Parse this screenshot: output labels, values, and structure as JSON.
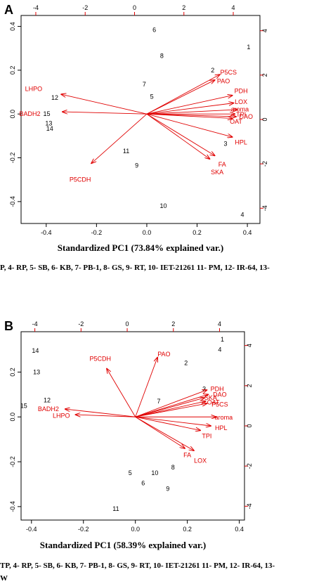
{
  "chart_data": [
    {
      "type": "scatter",
      "panel_label": "A",
      "xlabel": "Standardized PC1 (73.84% explained var.)",
      "caption": "P, 4- RP, 5- SB, 6- KB, 7- PB-1, 8- GS, 9- RT, 10- IET-21261 11- PM, 12- IR-64, 13-",
      "xlim": [
        -0.5,
        0.45
      ],
      "ylim": [
        -0.5,
        0.45
      ],
      "x_ticks": [
        -0.4,
        -0.2,
        0.0,
        0.2,
        0.4
      ],
      "x_tick_labels": [
        "-0.4",
        "-0.2",
        "0.0",
        "0.2",
        "0.4"
      ],
      "y_ticks": [
        -0.4,
        -0.2,
        0.0,
        0.2,
        0.4
      ],
      "y_tick_labels": [
        "-0.4",
        "-0.2",
        "0.0",
        "0.2",
        "0.4"
      ],
      "top_ticks": [
        -4,
        -2,
        0,
        2,
        4
      ],
      "top_tick_labels": [
        "-4",
        "-2",
        "0",
        "2",
        "4"
      ],
      "right_ticks": [
        -4,
        -2,
        0,
        2,
        4
      ],
      "right_tick_labels": [
        "-4",
        "-2",
        "0",
        "2",
        "4"
      ],
      "observations": [
        {
          "label": "1",
          "x": 0.405,
          "y": 0.305
        },
        {
          "label": "2",
          "x": 0.262,
          "y": 0.2
        },
        {
          "label": "3",
          "x": 0.313,
          "y": -0.135
        },
        {
          "label": "4",
          "x": 0.38,
          "y": -0.46
        },
        {
          "label": "5",
          "x": 0.02,
          "y": 0.08
        },
        {
          "label": "6",
          "x": 0.03,
          "y": 0.385
        },
        {
          "label": "7",
          "x": -0.01,
          "y": 0.135
        },
        {
          "label": "8",
          "x": 0.06,
          "y": 0.265
        },
        {
          "label": "9",
          "x": -0.04,
          "y": -0.235
        },
        {
          "label": "10",
          "x": 0.066,
          "y": -0.42
        },
        {
          "label": "11",
          "x": -0.082,
          "y": -0.17
        },
        {
          "label": "12",
          "x": -0.366,
          "y": 0.075
        },
        {
          "label": "13",
          "x": -0.39,
          "y": -0.042
        },
        {
          "label": "14",
          "x": -0.386,
          "y": -0.066
        },
        {
          "label": "15",
          "x": -0.398,
          "y": 0.0
        }
      ],
      "variables": [
        {
          "label": "LHPO",
          "x": -0.34,
          "y": 0.09,
          "label_x": -0.45,
          "label_y": 0.115
        },
        {
          "label": "BADH2",
          "x": -0.335,
          "y": 0.01,
          "label_x": -0.465,
          "label_y": 0.0
        },
        {
          "label": "P5CDH",
          "x": -0.22,
          "y": -0.225,
          "label_x": -0.265,
          "label_y": -0.3
        },
        {
          "label": "P5CS",
          "x": 0.29,
          "y": 0.18,
          "label_x": 0.325,
          "label_y": 0.19
        },
        {
          "label": "PAO",
          "x": 0.27,
          "y": 0.155,
          "label_x": 0.305,
          "label_y": 0.15
        },
        {
          "label": "PDH",
          "x": 0.34,
          "y": 0.085,
          "label_x": 0.375,
          "label_y": 0.105
        },
        {
          "label": "LOX",
          "x": 0.345,
          "y": 0.05,
          "label_x": 0.375,
          "label_y": 0.055
        },
        {
          "label": "aroma",
          "x": 0.36,
          "y": 0.02,
          "label_x": 0.37,
          "label_y": 0.022
        },
        {
          "label": "TPI",
          "x": 0.35,
          "y": 0.0,
          "label_x": 0.375,
          "label_y": -0.003
        },
        {
          "label": "DAO",
          "x": 0.355,
          "y": -0.012,
          "label_x": 0.395,
          "label_y": -0.012
        },
        {
          "label": "OAT",
          "x": 0.34,
          "y": -0.02,
          "label_x": 0.355,
          "label_y": -0.035
        },
        {
          "label": "HPL",
          "x": 0.34,
          "y": -0.105,
          "label_x": 0.375,
          "label_y": -0.13
        },
        {
          "label": "FA",
          "x": 0.27,
          "y": -0.19,
          "label_x": 0.3,
          "label_y": -0.23
        },
        {
          "label": "SKA",
          "x": 0.25,
          "y": -0.205,
          "label_x": 0.28,
          "label_y": -0.265
        }
      ]
    },
    {
      "type": "scatter",
      "panel_label": "B",
      "xlabel": "Standardized PC1 (58.39% explained var.)",
      "caption": "TP, 4- RP, 5- SB, 6- KB, 7- PB-1, 8- GS, 9- RT, 10- IET-21261 11- PM, 12- IR-64, 13-",
      "caption_line2": "W",
      "xlim": [
        -0.44,
        0.42
      ],
      "ylim": [
        -0.46,
        0.38
      ],
      "x_ticks": [
        -0.4,
        -0.2,
        0.0,
        0.2,
        0.4
      ],
      "x_tick_labels": [
        "-0.4",
        "-0.2",
        "0.0",
        "0.2",
        "0.4"
      ],
      "y_ticks": [
        -0.4,
        -0.2,
        0.0,
        0.2
      ],
      "y_tick_labels": [
        "-0.4",
        "-0.2",
        "0.0",
        "0.2"
      ],
      "top_ticks": [
        -4,
        -2,
        0,
        2,
        4
      ],
      "top_tick_labels": [
        "-4",
        "-2",
        "0",
        "2",
        "4"
      ],
      "right_ticks": [
        -4,
        -2,
        0,
        2,
        4
      ],
      "right_tick_labels": [
        "-4",
        "-2",
        "0",
        "2",
        "4"
      ],
      "observations": [
        {
          "label": "1",
          "x": 0.335,
          "y": 0.345
        },
        {
          "label": "2",
          "x": 0.195,
          "y": 0.24
        },
        {
          "label": "3",
          "x": 0.265,
          "y": 0.125
        },
        {
          "label": "4",
          "x": 0.325,
          "y": 0.3
        },
        {
          "label": "5",
          "x": -0.02,
          "y": -0.25
        },
        {
          "label": "6",
          "x": 0.03,
          "y": -0.295
        },
        {
          "label": "7",
          "x": 0.09,
          "y": 0.07
        },
        {
          "label": "8",
          "x": 0.145,
          "y": -0.225
        },
        {
          "label": "9",
          "x": 0.125,
          "y": -0.32
        },
        {
          "label": "10",
          "x": 0.075,
          "y": -0.25
        },
        {
          "label": "11",
          "x": -0.075,
          "y": -0.41
        },
        {
          "label": "12",
          "x": -0.34,
          "y": 0.075
        },
        {
          "label": "13",
          "x": -0.38,
          "y": 0.2
        },
        {
          "label": "14",
          "x": -0.385,
          "y": 0.295
        },
        {
          "label": "15",
          "x": -0.43,
          "y": 0.05
        }
      ],
      "variables": [
        {
          "label": "P5CDH",
          "x": -0.11,
          "y": 0.215,
          "label_x": -0.135,
          "label_y": 0.26
        },
        {
          "label": "PAO",
          "x": 0.085,
          "y": 0.265,
          "label_x": 0.11,
          "label_y": 0.28
        },
        {
          "label": "BADH2",
          "x": -0.27,
          "y": 0.035,
          "label_x": -0.335,
          "label_y": 0.035
        },
        {
          "label": "LHPO",
          "x": -0.23,
          "y": 0.01,
          "label_x": -0.285,
          "label_y": 0.005
        },
        {
          "label": "PDH",
          "x": 0.275,
          "y": 0.12,
          "label_x": 0.315,
          "label_y": 0.125
        },
        {
          "label": "DAO",
          "x": 0.28,
          "y": 0.1,
          "label_x": 0.325,
          "label_y": 0.1
        },
        {
          "label": "SKA",
          "x": 0.265,
          "y": 0.085,
          "label_x": 0.29,
          "label_y": 0.085
        },
        {
          "label": "OAT",
          "x": 0.27,
          "y": 0.07,
          "label_x": 0.3,
          "label_y": 0.065
        },
        {
          "label": "P5CS",
          "x": 0.275,
          "y": 0.06,
          "label_x": 0.325,
          "label_y": 0.055
        },
        {
          "label": "aroma",
          "x": 0.31,
          "y": 0.0,
          "label_x": 0.34,
          "label_y": -0.003
        },
        {
          "label": "HPL",
          "x": 0.29,
          "y": -0.04,
          "label_x": 0.33,
          "label_y": -0.05
        },
        {
          "label": "TPI",
          "x": 0.25,
          "y": -0.06,
          "label_x": 0.275,
          "label_y": -0.085
        },
        {
          "label": "FA",
          "x": 0.19,
          "y": -0.14,
          "label_x": 0.2,
          "label_y": -0.17
        },
        {
          "label": "LOX",
          "x": 0.225,
          "y": -0.15,
          "label_x": 0.25,
          "label_y": -0.195
        }
      ]
    }
  ]
}
